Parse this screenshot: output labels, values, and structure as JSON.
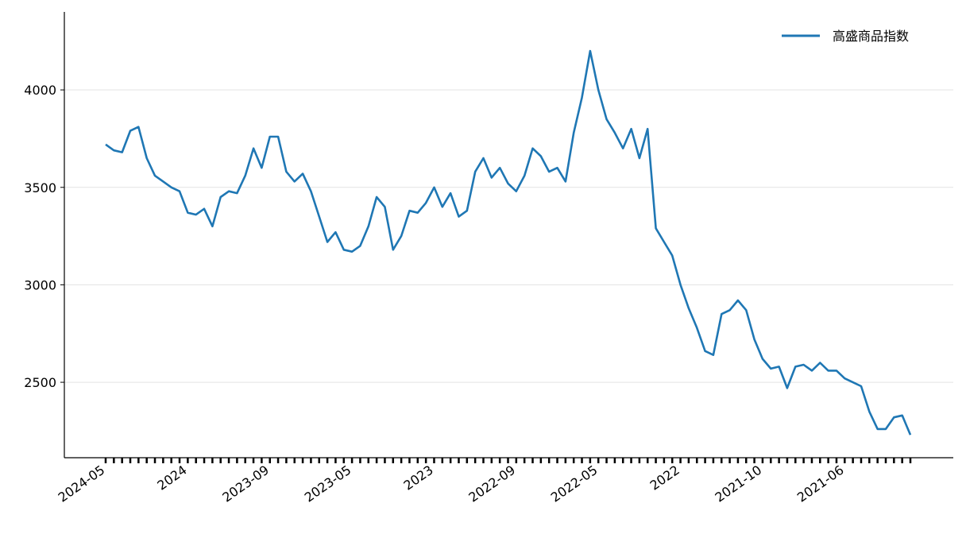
{
  "chart_data": {
    "type": "line",
    "categories": [
      "2024-05",
      null,
      null,
      null,
      null,
      null,
      null,
      null,
      null,
      null,
      "2024",
      null,
      null,
      null,
      null,
      null,
      null,
      null,
      null,
      null,
      "2023-09",
      null,
      null,
      null,
      null,
      null,
      null,
      null,
      null,
      null,
      "2023-05",
      null,
      null,
      null,
      null,
      null,
      null,
      null,
      null,
      null,
      "2023",
      null,
      null,
      null,
      null,
      null,
      null,
      null,
      null,
      null,
      "2022-09",
      null,
      null,
      null,
      null,
      null,
      null,
      null,
      null,
      null,
      "2022-05",
      null,
      null,
      null,
      null,
      null,
      null,
      null,
      null,
      null,
      "2022",
      null,
      null,
      null,
      null,
      null,
      null,
      null,
      null,
      null,
      "2021-10",
      null,
      null,
      null,
      null,
      null,
      null,
      null,
      null,
      null,
      "2021-06",
      null,
      null,
      null,
      null,
      null,
      null,
      null,
      null
    ],
    "series": [
      {
        "name": "高盛商品指数",
        "color": "#1f77b4",
        "values": [
          3720,
          3690,
          3680,
          3790,
          3810,
          3650,
          3560,
          3530,
          3500,
          3480,
          3370,
          3360,
          3390,
          3300,
          3450,
          3480,
          3470,
          3560,
          3700,
          3600,
          3760,
          3760,
          3580,
          3530,
          3570,
          3480,
          3350,
          3220,
          3270,
          3180,
          3170,
          3200,
          3300,
          3450,
          3400,
          3180,
          3250,
          3380,
          3370,
          3420,
          3500,
          3400,
          3470,
          3350,
          3380,
          3580,
          3650,
          3550,
          3600,
          3520,
          3480,
          3560,
          3700,
          3660,
          3580,
          3600,
          3530,
          3780,
          3960,
          4200,
          4000,
          3850,
          3780,
          3700,
          3800,
          3650,
          3800,
          3290,
          3220,
          3150,
          3000,
          2880,
          2780,
          2660,
          2640,
          2850,
          2870,
          2920,
          2870,
          2720,
          2620,
          2570,
          2580,
          2470,
          2580,
          2590,
          2560,
          2600,
          2560,
          2560,
          2520,
          2500,
          2480,
          2350,
          2260,
          2260,
          2320,
          2330,
          2230
        ]
      }
    ],
    "ylim": [
      2113,
      4400
    ],
    "yticks": [
      2500,
      3000,
      3500,
      4000
    ],
    "grid": true,
    "legend": "upper right"
  }
}
